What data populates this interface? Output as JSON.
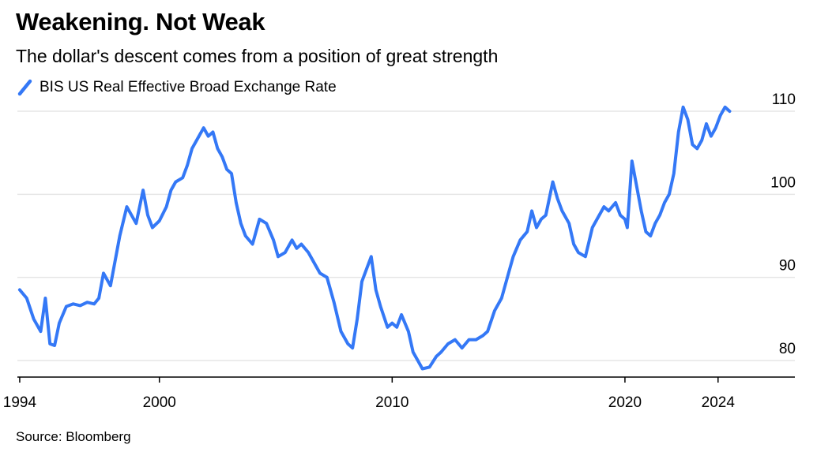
{
  "title": "Weakening. Not Weak",
  "subtitle": "The dollar's descent comes from a position of great strength",
  "source": "Source: Bloomberg",
  "colors": {
    "series": "#3478f6",
    "grid": "#e6e6e6",
    "axis": "#000000"
  },
  "chart_data": {
    "type": "line",
    "title": "Weakening. Not Weak",
    "subtitle": "The dollar's descent comes from a position of great strength",
    "xlabel": "",
    "ylabel": "",
    "x_ticks": [
      1994,
      2000,
      2010,
      2020,
      2024
    ],
    "y_ticks": [
      80,
      90,
      100,
      110
    ],
    "xlim": [
      1993.9,
      2027.3
    ],
    "ylim": [
      78.0,
      112.0
    ],
    "y_axis_position": "right",
    "grid": "horizontal",
    "legend_position": "top-left",
    "series": [
      {
        "name": "BIS US Real Effective Broad Exchange Rate",
        "color": "#3478f6",
        "x": [
          1994.0,
          1994.3,
          1994.6,
          1994.9,
          1995.1,
          1995.3,
          1995.5,
          1995.7,
          1996.0,
          1996.3,
          1996.6,
          1996.9,
          1997.2,
          1997.4,
          1997.6,
          1997.9,
          1998.1,
          1998.3,
          1998.6,
          1998.8,
          1999.0,
          1999.3,
          1999.5,
          1999.7,
          2000.0,
          2000.3,
          2000.5,
          2000.7,
          2001.0,
          2001.2,
          2001.4,
          2001.7,
          2001.9,
          2002.1,
          2002.3,
          2002.5,
          2002.7,
          2002.9,
          2003.1,
          2003.3,
          2003.5,
          2003.7,
          2004.0,
          2004.3,
          2004.6,
          2004.9,
          2005.1,
          2005.4,
          2005.7,
          2005.9,
          2006.1,
          2006.4,
          2006.7,
          2006.9,
          2007.2,
          2007.5,
          2007.8,
          2008.1,
          2008.3,
          2008.5,
          2008.7,
          2008.9,
          2009.1,
          2009.3,
          2009.5,
          2009.8,
          2010.0,
          2010.2,
          2010.4,
          2010.7,
          2010.9,
          2011.1,
          2011.3,
          2011.6,
          2011.9,
          2012.1,
          2012.4,
          2012.7,
          2013.0,
          2013.3,
          2013.6,
          2013.9,
          2014.1,
          2014.4,
          2014.7,
          2015.0,
          2015.2,
          2015.5,
          2015.8,
          2016.0,
          2016.2,
          2016.4,
          2016.6,
          2016.9,
          2017.1,
          2017.3,
          2017.6,
          2017.8,
          2018.0,
          2018.3,
          2018.6,
          2018.8,
          2019.1,
          2019.3,
          2019.6,
          2019.8,
          2020.0,
          2020.1,
          2020.3,
          2020.5,
          2020.7,
          2020.9,
          2021.1,
          2021.3,
          2021.5,
          2021.7,
          2021.9,
          2022.1,
          2022.3,
          2022.5,
          2022.7,
          2022.9,
          2023.1,
          2023.3,
          2023.5,
          2023.7,
          2023.9,
          2024.1,
          2024.3,
          2024.5
        ],
        "y": [
          88.5,
          87.5,
          85.0,
          83.5,
          87.5,
          82.0,
          81.8,
          84.5,
          86.5,
          86.8,
          86.6,
          87.0,
          86.8,
          87.5,
          90.5,
          89.0,
          92.0,
          95.0,
          98.5,
          97.5,
          96.5,
          100.5,
          97.5,
          96.0,
          96.8,
          98.5,
          100.5,
          101.5,
          102.0,
          103.5,
          105.5,
          107.0,
          108.0,
          107.0,
          107.5,
          105.5,
          104.5,
          103.0,
          102.5,
          99.0,
          96.5,
          95.0,
          94.0,
          97.0,
          96.5,
          94.5,
          92.5,
          93.0,
          94.5,
          93.5,
          94.0,
          93.0,
          91.5,
          90.5,
          90.0,
          87.0,
          83.5,
          82.0,
          81.5,
          85.0,
          89.5,
          91.0,
          92.5,
          88.5,
          86.5,
          84.0,
          84.5,
          84.0,
          85.5,
          83.5,
          81.0,
          80.0,
          79.0,
          79.2,
          80.5,
          81.0,
          82.0,
          82.5,
          81.5,
          82.5,
          82.5,
          83.0,
          83.5,
          86.0,
          87.5,
          90.5,
          92.5,
          94.5,
          95.5,
          98.0,
          96.0,
          97.0,
          97.5,
          101.5,
          99.5,
          98.0,
          96.5,
          94.0,
          93.0,
          92.5,
          96.0,
          97.0,
          98.5,
          98.0,
          99.0,
          97.5,
          97.0,
          96.0,
          104.0,
          101.0,
          98.0,
          95.5,
          95.0,
          96.5,
          97.5,
          99.0,
          100.0,
          102.5,
          107.5,
          110.5,
          109.0,
          106.0,
          105.5,
          106.5,
          108.5,
          107.0,
          108.0,
          109.5,
          110.5,
          110.0
        ]
      }
    ]
  }
}
